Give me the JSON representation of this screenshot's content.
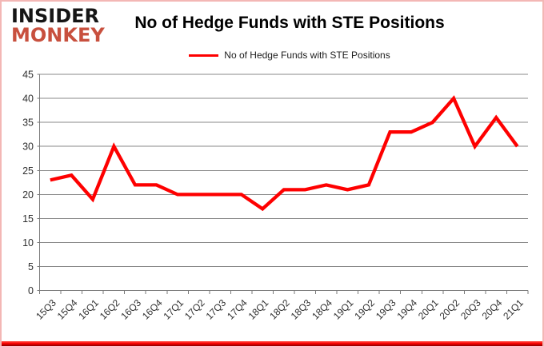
{
  "logo": {
    "line1": "INSIDER",
    "line2": "MONKEY",
    "color_primary": "#151515",
    "color_accent": "#c8503e"
  },
  "header": {
    "title": "No of Hedge Funds with STE Positions"
  },
  "legend": {
    "label": "No of Hedge Funds with STE Positions",
    "color": "#fe0000"
  },
  "chart_data": {
    "type": "line",
    "title": "No of Hedge Funds with STE Positions",
    "categories": [
      "15Q3",
      "15Q4",
      "16Q1",
      "16Q2",
      "16Q3",
      "16Q4",
      "17Q1",
      "17Q2",
      "17Q3",
      "17Q4",
      "18Q1",
      "18Q2",
      "18Q3",
      "18Q4",
      "19Q1",
      "19Q2",
      "19Q3",
      "19Q4",
      "20Q1",
      "20Q2",
      "20Q3",
      "20Q4",
      "21Q1"
    ],
    "series": [
      {
        "name": "No of Hedge Funds with STE Positions",
        "color": "#fe0000",
        "values": [
          23,
          24,
          19,
          30,
          22,
          22,
          20,
          20,
          20,
          20,
          17,
          21,
          21,
          22,
          21,
          22,
          33,
          33,
          35,
          40,
          30,
          36,
          30
        ]
      }
    ],
    "xlabel": "",
    "ylabel": "",
    "ylim": [
      0,
      45
    ],
    "ytick_step": 5,
    "grid": true,
    "legend_position": "top-center",
    "colors": {
      "gridline": "#8a8a8a",
      "axis": "#7a7a7a",
      "tick_label": "#2f2f2f"
    }
  },
  "frame": {
    "border_color": "#f3b7b5",
    "bottom_bar_top": "#ff5a4e",
    "bottom_bar_mid": "#fe0000",
    "bottom_bar_bottom": "#8f0000"
  }
}
